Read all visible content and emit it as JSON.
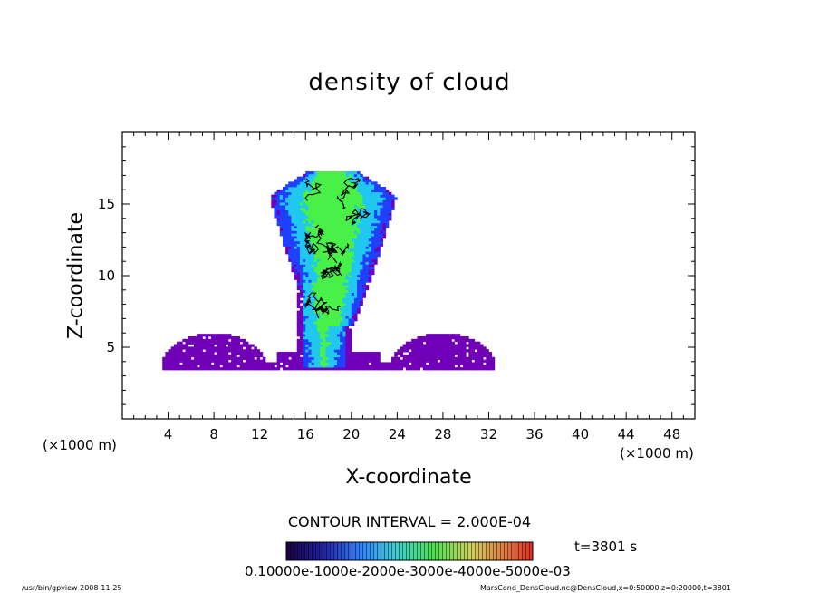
{
  "chart_data": {
    "type": "heatmap",
    "title": "density of cloud",
    "xlabel": "X-coordinate",
    "ylabel": "Z-coordinate",
    "x_unit_left": "(×1000 m)",
    "x_unit_right": "(×1000 m)",
    "xlim": [
      0,
      50
    ],
    "ylim": [
      0,
      20
    ],
    "x_ticks": [
      4,
      8,
      12,
      16,
      20,
      24,
      28,
      32,
      36,
      40,
      44,
      48
    ],
    "y_ticks": [
      5,
      10,
      15
    ],
    "contour_interval": "CONTOUR INTERVAL = 2.000E-04",
    "time_label": "t=3801 s",
    "colorbar_labels": "0.10000e-1000e-2000e-3000e-4000e-5000e-03",
    "colors": {
      "low": "#7000b8",
      "blue": "#2040ff",
      "cyan": "#20c8f0",
      "green": "#48f048",
      "contour": "#000000"
    },
    "regions": [
      {
        "name": "left-base-cloud",
        "xmin": 3.4,
        "xmax": 12.5,
        "zmin": 3.5,
        "ztop": 6.0,
        "level": 0.05
      },
      {
        "name": "right-base-cloud",
        "xmin": 23.5,
        "xmax": 32.5,
        "zmin": 3.5,
        "ztop": 6.0,
        "level": 0.05
      },
      {
        "name": "central-column",
        "xmin": 15.8,
        "xmax": 19.6,
        "zmin": 3.6,
        "ztop": 8.5,
        "level": 0.45
      },
      {
        "name": "anvil-top",
        "xmin": 12.3,
        "xmax": 24.5,
        "zmin": 7.5,
        "ztop": 17.2,
        "level": 0.75
      }
    ]
  },
  "footer": {
    "left": "/usr/bin/gpview  2008-11-25",
    "right": "MarsCond_DensCloud.nc@DensCloud,x=0:50000,z=0:20000,t=3801"
  }
}
